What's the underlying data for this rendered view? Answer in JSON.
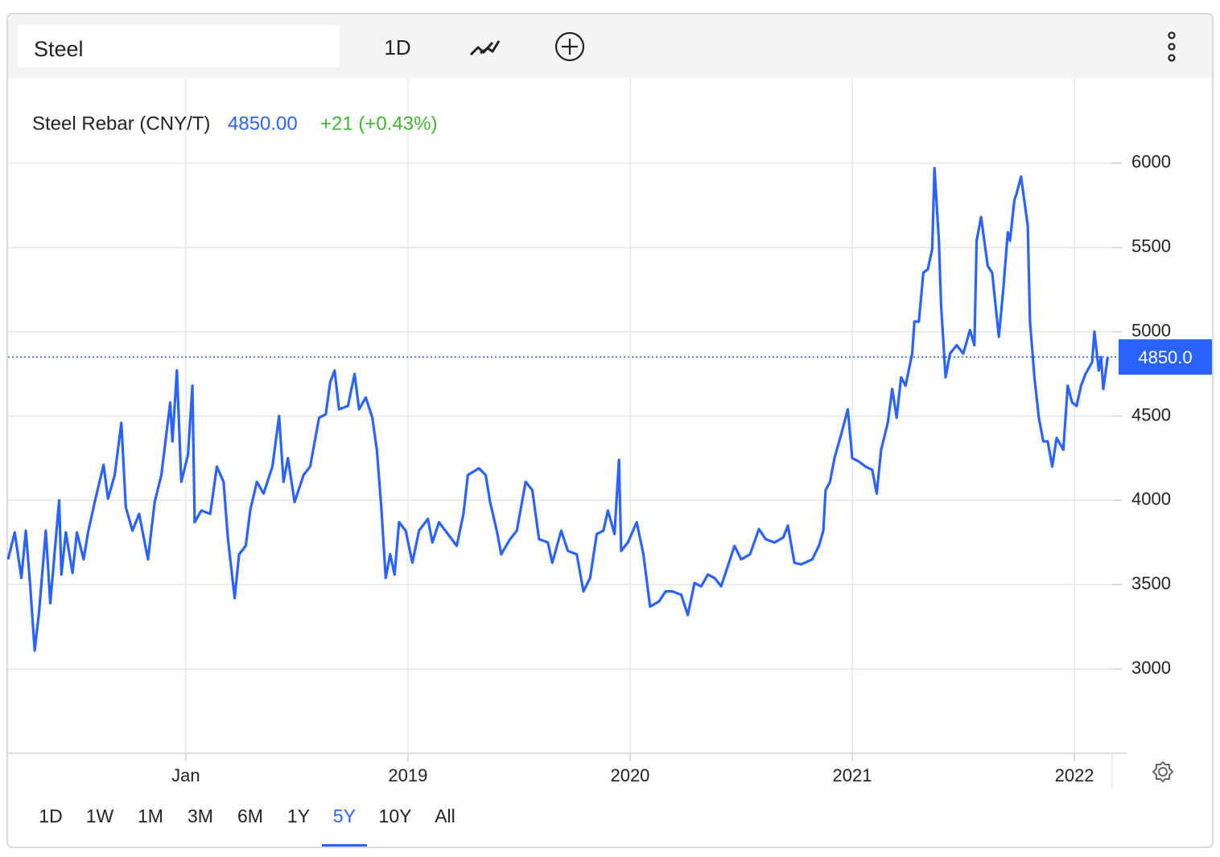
{
  "toolbar": {
    "search": "Steel",
    "interval": "1D"
  },
  "chart_data": {
    "type": "line",
    "series": [
      {
        "name": "Steel Rebar (CNY/T)",
        "color": "#2962ff",
        "values": [
          3650,
          3810,
          3540,
          3820,
          3490,
          3110,
          3340,
          3820,
          3390,
          4000,
          3560,
          3810,
          3570,
          3810,
          3650,
          3810,
          3990,
          4210,
          4010,
          4150,
          4460,
          3960,
          3820,
          3920,
          3650,
          3990,
          4150,
          4580,
          4350,
          4770,
          4110,
          4270,
          4680,
          3870,
          3940,
          3920,
          4200,
          4110,
          3770,
          3420,
          3680,
          3730,
          3940,
          4110,
          4040,
          4200,
          4500,
          4110,
          4250,
          3990,
          4150,
          4200,
          4490,
          4510,
          4700,
          4770,
          4540,
          4560,
          4750,
          4540,
          4610,
          4490,
          4300,
          3960,
          3540,
          3680,
          3560,
          3870,
          3820,
          3630,
          3820,
          3890,
          3750,
          3870,
          3800,
          3730,
          3920,
          4150,
          4190,
          4150,
          3990,
          3820,
          3680,
          3770,
          3820,
          4110,
          4060,
          3770,
          3750,
          3630,
          3820,
          3700,
          3680,
          3460,
          3540,
          3800,
          3820,
          3940,
          3800,
          4240,
          3700,
          3750,
          3870,
          3680,
          3370,
          3400,
          3460,
          3460,
          3440,
          3320,
          3510,
          3490,
          3560,
          3540,
          3490,
          3610,
          3730,
          3650,
          3680,
          3830,
          3770,
          3750,
          3780,
          3850,
          3630,
          3620,
          3650,
          3730,
          3820,
          4060,
          4110,
          4250,
          4390,
          4540,
          4250,
          4230,
          4200,
          4180,
          4040,
          4300,
          4460,
          4660,
          4490,
          4730,
          4680,
          4870,
          5060,
          5060,
          5350,
          5370,
          5490,
          5970,
          5540,
          5160,
          4730,
          4870,
          4920,
          4870,
          5010,
          4920,
          5540,
          5680,
          5390,
          5350,
          4970,
          5250,
          5590,
          5540,
          5780,
          5820,
          5920,
          5630,
          5060,
          4730,
          4490,
          4350,
          4350,
          4200,
          4370,
          4300,
          4680,
          4580,
          4560,
          4680,
          4750,
          4820,
          5000,
          4770,
          4850,
          4660,
          4850
        ]
      }
    ],
    "x": [
      2017.2,
      2017.23,
      2017.26,
      2017.28,
      2017.3,
      2017.32,
      2017.34,
      2017.37,
      2017.39,
      2017.43,
      2017.44,
      2017.46,
      2017.49,
      2017.51,
      2017.54,
      2017.56,
      2017.59,
      2017.63,
      2017.65,
      2017.68,
      2017.71,
      2017.73,
      2017.76,
      2017.79,
      2017.83,
      2017.86,
      2017.89,
      2017.93,
      2017.94,
      2017.96,
      2017.98,
      2018.01,
      2018.03,
      2018.04,
      2018.07,
      2018.11,
      2018.14,
      2018.17,
      2018.19,
      2018.22,
      2018.24,
      2018.27,
      2018.29,
      2018.32,
      2018.35,
      2018.39,
      2018.42,
      2018.44,
      2018.46,
      2018.49,
      2018.53,
      2018.56,
      2018.6,
      2018.63,
      2018.65,
      2018.67,
      2018.69,
      2018.73,
      2018.76,
      2018.78,
      2018.81,
      2018.84,
      2018.86,
      2018.88,
      2018.9,
      2018.92,
      2018.94,
      2018.96,
      2018.99,
      2019.02,
      2019.05,
      2019.09,
      2019.11,
      2019.14,
      2019.18,
      2019.22,
      2019.25,
      2019.27,
      2019.32,
      2019.35,
      2019.37,
      2019.4,
      2019.42,
      2019.46,
      2019.49,
      2019.53,
      2019.56,
      2019.59,
      2019.63,
      2019.65,
      2019.69,
      2019.72,
      2019.76,
      2019.79,
      2019.82,
      2019.85,
      2019.88,
      2019.9,
      2019.93,
      2019.95,
      2019.96,
      2019.99,
      2020.03,
      2020.06,
      2020.09,
      2020.13,
      2020.16,
      2020.19,
      2020.23,
      2020.26,
      2020.29,
      2020.32,
      2020.35,
      2020.38,
      2020.41,
      2020.44,
      2020.47,
      2020.5,
      2020.54,
      2020.58,
      2020.61,
      2020.65,
      2020.69,
      2020.71,
      2020.74,
      2020.77,
      2020.82,
      2020.85,
      2020.87,
      2020.88,
      2020.9,
      2020.92,
      2020.95,
      2020.98,
      2021.0,
      2021.03,
      2021.06,
      2021.09,
      2021.11,
      2021.13,
      2021.16,
      2021.18,
      2021.2,
      2021.22,
      2021.24,
      2021.27,
      2021.28,
      2021.3,
      2021.32,
      2021.34,
      2021.36,
      2021.37,
      2021.39,
      2021.4,
      2021.42,
      2021.44,
      2021.47,
      2021.5,
      2021.53,
      2021.55,
      2021.56,
      2021.58,
      2021.61,
      2021.63,
      2021.66,
      2021.68,
      2021.7,
      2021.71,
      2021.73,
      2021.74,
      2021.76,
      2021.79,
      2021.8,
      2021.82,
      2021.84,
      2021.86,
      2021.88,
      2021.9,
      2021.92,
      2021.95,
      2021.97,
      2021.99,
      2022.01,
      2022.03,
      2022.05,
      2022.08,
      2022.09,
      2022.11,
      2022.12,
      2022.13,
      2022.15
    ],
    "xlim": [
      2017.2,
      2022.17
    ],
    "xticks": [
      {
        "value": 2018,
        "label": "Jan"
      },
      2019,
      2020,
      2021,
      2022
    ],
    "ylim": [
      2500,
      6500
    ],
    "yticks": [
      3000,
      3500,
      4000,
      4500,
      5000,
      5500,
      6000
    ],
    "grid": true,
    "quote": {
      "price": "4850.00",
      "change": "+21 (+0.43%)",
      "price_color": "#2962ff",
      "change_color": "#3cb82e"
    },
    "price_line": {
      "value": 4850,
      "label": "4850.0"
    },
    "ranges": [
      "1D",
      "1W",
      "1M",
      "3M",
      "6M",
      "1Y",
      "5Y",
      "10Y",
      "All"
    ],
    "selected_range": "5Y"
  }
}
